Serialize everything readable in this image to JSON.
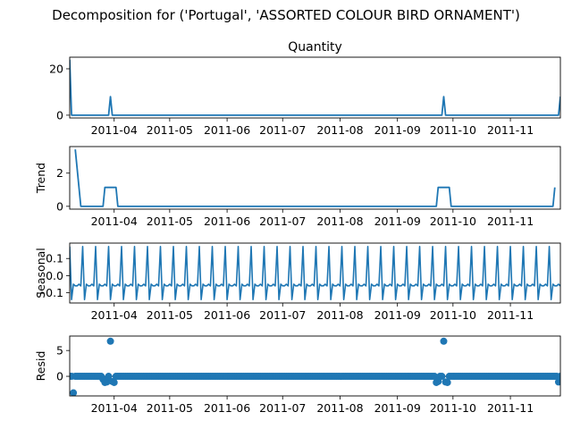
{
  "figure": {
    "suptitle": "Decomposition for ('Portugal', 'ASSORTED COLOUR BIRD ORNAMENT')",
    "line_color": "#1f77b4"
  },
  "chart_data": [
    {
      "type": "line",
      "title": "Quantity",
      "ylabel": "",
      "xlabel": "",
      "x_range": [
        "2011-03-08",
        "2011-11-28"
      ],
      "ylim": [
        -1.2,
        25
      ],
      "yticks": [
        0,
        20
      ],
      "x_ticks": [
        "2011-04",
        "2011-05",
        "2011-06",
        "2011-07",
        "2011-08",
        "2011-09",
        "2011-10",
        "2011-11"
      ],
      "series": [
        {
          "points": [
            [
              "2011-03-08",
              24
            ],
            [
              "2011-03-09",
              0
            ],
            [
              "2011-03-29",
              0
            ],
            [
              "2011-03-30",
              8
            ],
            [
              "2011-03-31",
              0
            ],
            [
              "2011-09-25",
              0
            ],
            [
              "2011-09-26",
              8
            ],
            [
              "2011-09-27",
              0
            ],
            [
              "2011-11-27",
              0
            ],
            [
              "2011-11-28",
              8
            ]
          ]
        }
      ]
    },
    {
      "type": "line",
      "title": "",
      "ylabel": "Trend",
      "xlabel": "",
      "x_range": [
        "2011-03-08",
        "2011-11-28"
      ],
      "ylim": [
        -0.17,
        3.6
      ],
      "yticks": [
        0,
        2
      ],
      "x_ticks": [
        "2011-04",
        "2011-05",
        "2011-06",
        "2011-07",
        "2011-08",
        "2011-09",
        "2011-10",
        "2011-11"
      ],
      "series": [
        {
          "points": [
            [
              "2011-03-11",
              3.43
            ],
            [
              "2011-03-14",
              0
            ],
            [
              "2011-03-26",
              0
            ],
            [
              "2011-03-27",
              1.14
            ],
            [
              "2011-04-02",
              1.14
            ],
            [
              "2011-04-03",
              0
            ],
            [
              "2011-09-22",
              0
            ],
            [
              "2011-09-23",
              1.14
            ],
            [
              "2011-09-29",
              1.14
            ],
            [
              "2011-09-30",
              0
            ],
            [
              "2011-11-24",
              0
            ],
            [
              "2011-11-25",
              1.14
            ]
          ]
        }
      ]
    },
    {
      "type": "line",
      "title": "",
      "ylabel": "Seasonal",
      "xlabel": "",
      "x_range": [
        "2011-03-08",
        "2011-11-28"
      ],
      "ylim": [
        -0.16,
        0.19
      ],
      "yticks": [
        -0.1,
        0.0,
        0.1
      ],
      "ytick_labels": [
        "−0.1",
        "0.0",
        "0.1"
      ],
      "x_ticks": [
        "2011-04",
        "2011-05",
        "2011-06",
        "2011-07",
        "2011-08",
        "2011-09",
        "2011-10",
        "2011-11"
      ],
      "weekly_pattern": [
        0.17,
        -0.14,
        -0.05,
        -0.06,
        -0.06,
        -0.05,
        -0.06
      ],
      "pattern_start": "2011-03-08"
    },
    {
      "type": "scatter",
      "title": "",
      "ylabel": "Resid",
      "xlabel": "",
      "x_range": [
        "2011-03-08",
        "2011-11-28"
      ],
      "ylim": [
        -3.8,
        7.8
      ],
      "yticks": [
        0,
        5
      ],
      "x_ticks": [
        "2011-04",
        "2011-05",
        "2011-06",
        "2011-07",
        "2011-08",
        "2011-09",
        "2011-10",
        "2011-11"
      ],
      "baseline": 0,
      "outliers": [
        [
          "2011-03-10",
          -3.2
        ],
        [
          "2011-03-26",
          -0.6
        ],
        [
          "2011-03-27",
          -1.2
        ],
        [
          "2011-03-28",
          -1.1
        ],
        [
          "2011-03-30",
          6.8
        ],
        [
          "2011-03-31",
          -1.0
        ],
        [
          "2011-04-01",
          -1.2
        ],
        [
          "2011-09-22",
          -1.2
        ],
        [
          "2011-09-23",
          -1.0
        ],
        [
          "2011-09-26",
          6.8
        ],
        [
          "2011-09-27",
          -1.1
        ],
        [
          "2011-09-28",
          -1.2
        ],
        [
          "2011-11-27",
          -1.1
        ]
      ]
    }
  ]
}
